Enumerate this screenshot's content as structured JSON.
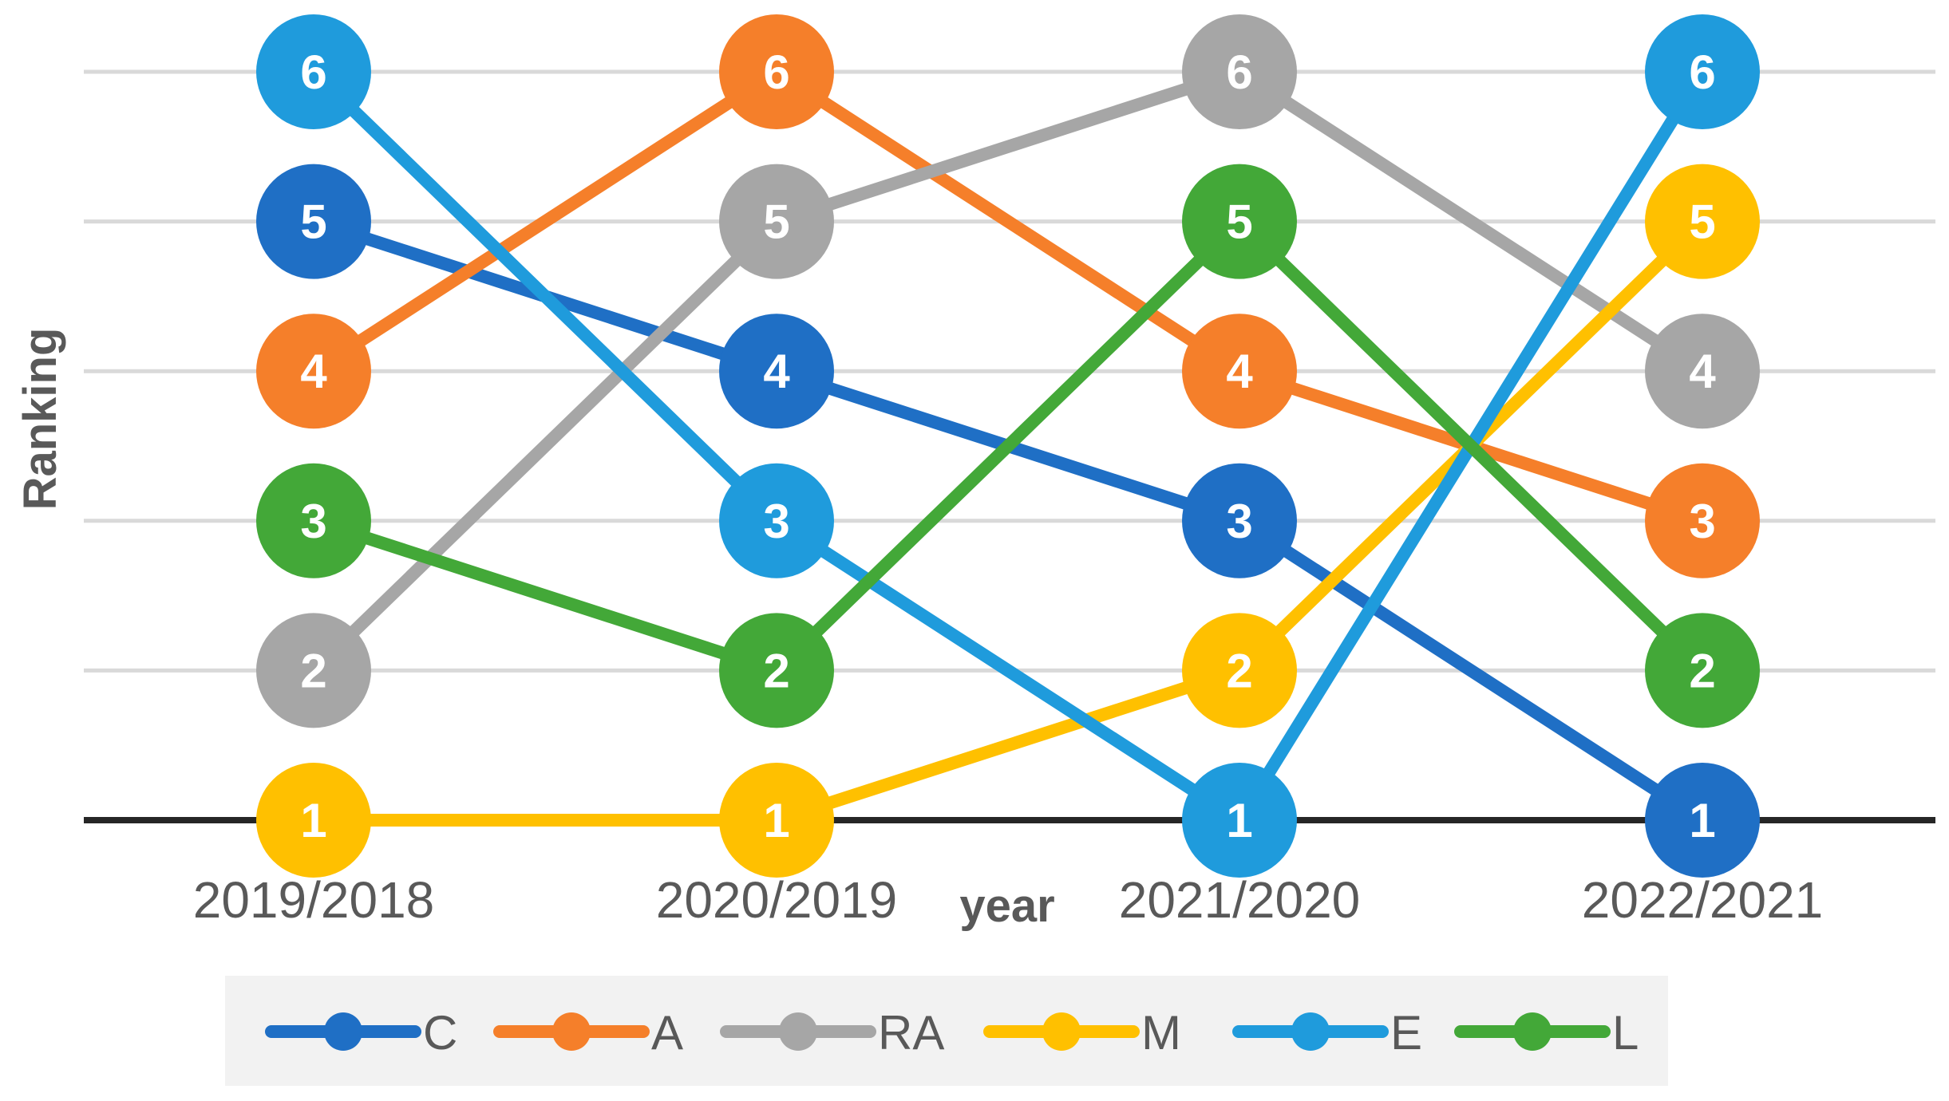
{
  "chart_data": {
    "type": "line",
    "title": "",
    "xlabel": "year",
    "ylabel": "Ranking",
    "categories": [
      "2019/2018",
      "2020/2019",
      "2021/2020",
      "2022/2021"
    ],
    "ylim": [
      1,
      6
    ],
    "grid": true,
    "legend_position": "bottom",
    "series": [
      {
        "name": "C",
        "color": "#1F6FC5",
        "values": [
          5,
          4,
          3,
          1
        ]
      },
      {
        "name": "A",
        "color": "#F57F2A",
        "values": [
          4,
          6,
          4,
          3
        ]
      },
      {
        "name": "RA",
        "color": "#A6A6A6",
        "values": [
          2,
          5,
          6,
          4
        ]
      },
      {
        "name": "M",
        "color": "#FFC000",
        "values": [
          1,
          1,
          2,
          5
        ]
      },
      {
        "name": "E",
        "color": "#1F9BDC",
        "values": [
          6,
          3,
          1,
          6
        ]
      },
      {
        "name": "L",
        "color": "#43A838",
        "values": [
          3,
          2,
          5,
          2
        ]
      }
    ],
    "draw_order": [
      "C",
      "A",
      "RA",
      "M",
      "E",
      "L"
    ]
  },
  "colors": {
    "gridline": "#D9D9D9",
    "baseline": "#262626",
    "legend_background": "#F2F2F2"
  }
}
